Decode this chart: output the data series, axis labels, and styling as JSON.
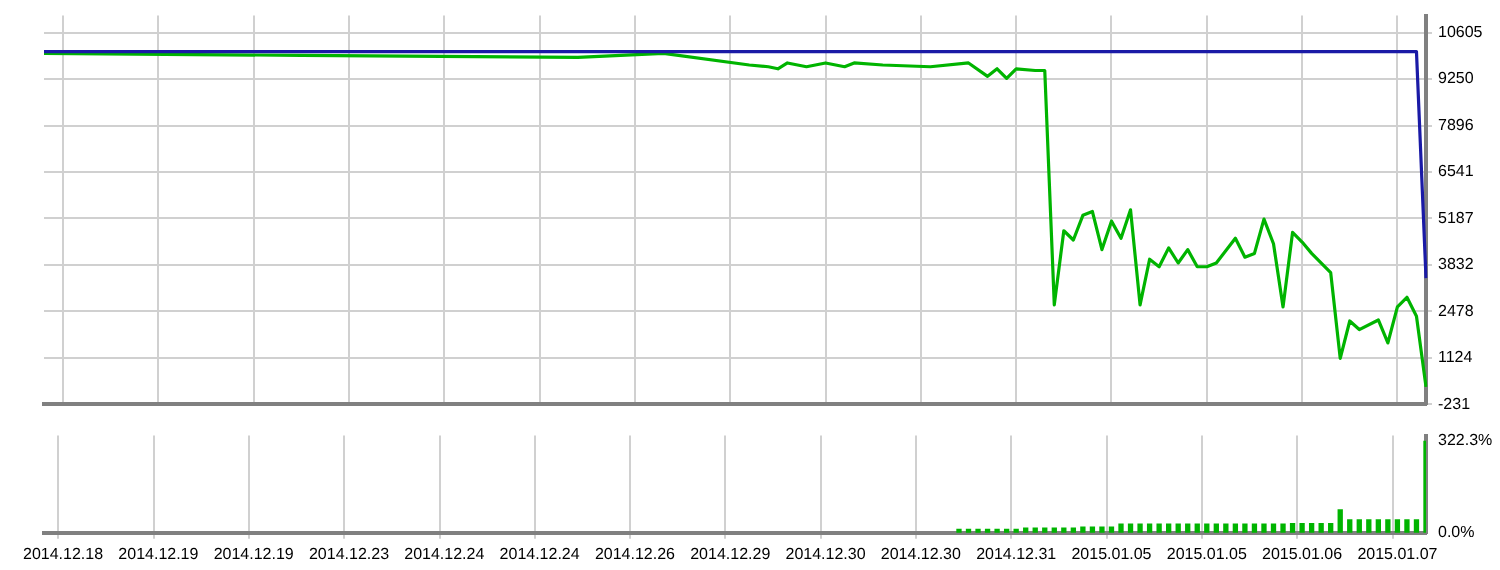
{
  "chart_data": [
    {
      "type": "line",
      "categories": [
        null,
        null,
        "2014.12.18",
        null,
        null,
        null,
        null,
        null,
        null,
        null,
        null,
        null,
        "2014.12.19",
        null,
        null,
        null,
        null,
        null,
        null,
        null,
        null,
        null,
        "2014.12.19",
        null,
        null,
        null,
        null,
        null,
        null,
        null,
        null,
        null,
        "2014.12.23",
        null,
        null,
        null,
        null,
        null,
        null,
        null,
        null,
        null,
        "2014.12.24",
        null,
        null,
        null,
        null,
        null,
        null,
        null,
        null,
        null,
        "2014.12.24",
        null,
        null,
        null,
        null,
        null,
        null,
        null,
        null,
        null,
        "2014.12.26",
        null,
        null,
        null,
        null,
        null,
        null,
        null,
        null,
        null,
        "2014.12.29",
        null,
        null,
        null,
        null,
        null,
        null,
        null,
        null,
        null,
        "2014.12.30",
        null,
        null,
        null,
        null,
        null,
        null,
        null,
        null,
        null,
        "2014.12.30",
        null,
        null,
        null,
        null,
        null,
        null,
        null,
        null,
        null,
        "2014.12.31",
        null,
        null,
        null,
        null,
        null,
        null,
        null,
        null,
        null,
        "2015.01.05",
        null,
        null,
        null,
        null,
        null,
        null,
        null,
        null,
        null,
        "2015.01.05",
        null,
        null,
        null,
        null,
        null,
        null,
        null,
        null,
        null,
        "2015.01.06",
        null,
        null,
        null,
        null,
        null,
        null,
        null,
        null,
        null,
        "2015.01.07",
        null,
        null,
        null
      ],
      "ylim": [
        -231,
        11100
      ],
      "yticks": [
        10605,
        9250,
        7896,
        6541,
        5187,
        3832,
        2478,
        1124,
        -231
      ],
      "grid": true,
      "tick_labels": "y",
      "marker": "none",
      "series": [
        {
          "color": "#1a1aa6",
          "values": [
            10050,
            null,
            null,
            null,
            null,
            null,
            null,
            null,
            null,
            null,
            null,
            null,
            null,
            null,
            null,
            null,
            null,
            null,
            null,
            null,
            null,
            null,
            null,
            null,
            null,
            null,
            null,
            null,
            null,
            null,
            null,
            null,
            null,
            null,
            null,
            null,
            null,
            null,
            null,
            null,
            null,
            null,
            null,
            null,
            null,
            null,
            null,
            null,
            null,
            null,
            null,
            null,
            null,
            null,
            null,
            null,
            null,
            null,
            null,
            null,
            null,
            null,
            null,
            null,
            null,
            null,
            null,
            null,
            null,
            null,
            null,
            null,
            null,
            null,
            null,
            null,
            null,
            null,
            null,
            null,
            null,
            null,
            null,
            null,
            null,
            null,
            null,
            null,
            null,
            null,
            null,
            null,
            null,
            null,
            null,
            null,
            null,
            null,
            null,
            null,
            null,
            null,
            null,
            null,
            null,
            null,
            null,
            null,
            null,
            null,
            null,
            null,
            null,
            null,
            null,
            null,
            null,
            null,
            null,
            null,
            null,
            null,
            null,
            null,
            null,
            null,
            null,
            null,
            null,
            null,
            null,
            null,
            null,
            null,
            null,
            null,
            null,
            null,
            null,
            null,
            null,
            null,
            null,
            null,
            10050,
            3450
          ]
        },
        {
          "color": "#00b400",
          "values": [
            10000,
            null,
            null,
            null,
            null,
            null,
            null,
            null,
            null,
            null,
            null,
            null,
            null,
            null,
            null,
            null,
            null,
            null,
            null,
            null,
            null,
            null,
            null,
            null,
            null,
            null,
            null,
            9940,
            null,
            null,
            null,
            null,
            null,
            null,
            null,
            null,
            null,
            null,
            null,
            null,
            null,
            null,
            null,
            null,
            null,
            null,
            null,
            null,
            null,
            null,
            null,
            null,
            null,
            null,
            null,
            null,
            9880,
            null,
            null,
            null,
            null,
            null,
            null,
            null,
            null,
            10000,
            null,
            null,
            null,
            null,
            null,
            null,
            null,
            null,
            9660,
            null,
            9610,
            9550,
            9720,
            null,
            9610,
            null,
            9720,
            null,
            9610,
            9720,
            null,
            null,
            9660,
            null,
            null,
            null,
            null,
            9610,
            null,
            null,
            null,
            9720,
            null,
            9330,
            9550,
            9270,
            9550,
            null,
            9500,
            9500,
            2670,
            4830,
            4560,
            5280,
            5390,
            4280,
            5110,
            4610,
            5440,
            2670,
            4000,
            3780,
            4330,
            3890,
            4280,
            3780,
            3780,
            3890,
            null,
            4610,
            4060,
            4170,
            5170,
            4450,
            2610,
            4780,
            4500,
            4170,
            null,
            3610,
            1110,
            2200,
            1950,
            null,
            2230,
            1560,
            2610,
            2890,
            2340,
            280
          ]
        }
      ]
    },
    {
      "type": "bar",
      "categories": [
        null,
        null,
        "2014.12.18",
        null,
        null,
        null,
        null,
        null,
        null,
        null,
        null,
        null,
        "2014.12.19",
        null,
        null,
        null,
        null,
        null,
        null,
        null,
        null,
        null,
        "2014.12.19",
        null,
        null,
        null,
        null,
        null,
        null,
        null,
        null,
        null,
        "2014.12.23",
        null,
        null,
        null,
        null,
        null,
        null,
        null,
        null,
        null,
        "2014.12.24",
        null,
        null,
        null,
        null,
        null,
        null,
        null,
        null,
        null,
        "2014.12.24",
        null,
        null,
        null,
        null,
        null,
        null,
        null,
        null,
        null,
        "2014.12.26",
        null,
        null,
        null,
        null,
        null,
        null,
        null,
        null,
        null,
        "2014.12.29",
        null,
        null,
        null,
        null,
        null,
        null,
        null,
        null,
        null,
        "2014.12.30",
        null,
        null,
        null,
        null,
        null,
        null,
        null,
        null,
        null,
        "2014.12.30",
        null,
        null,
        null,
        null,
        null,
        null,
        null,
        null,
        null,
        "2014.12.31",
        null,
        null,
        null,
        null,
        null,
        null,
        null,
        null,
        null,
        "2015.01.05",
        null,
        null,
        null,
        null,
        null,
        null,
        null,
        null,
        null,
        "2015.01.05",
        null,
        null,
        null,
        null,
        null,
        null,
        null,
        null,
        null,
        "2015.01.06",
        null,
        null,
        null,
        null,
        null,
        null,
        null,
        null,
        null,
        "2015.01.07",
        null,
        null,
        null
      ],
      "ylim": [
        0,
        340
      ],
      "yticks": [
        {
          "value": 322.3,
          "label": "322.3%"
        },
        {
          "value": 0,
          "label": "0.0%"
        }
      ],
      "grid": "x",
      "series": [
        {
          "color": "#00b400",
          "values": [
            null,
            null,
            null,
            null,
            null,
            null,
            null,
            null,
            null,
            null,
            null,
            null,
            null,
            null,
            null,
            null,
            null,
            null,
            null,
            null,
            null,
            null,
            null,
            null,
            null,
            null,
            null,
            null,
            null,
            null,
            null,
            null,
            null,
            null,
            null,
            null,
            null,
            null,
            null,
            null,
            null,
            null,
            null,
            null,
            null,
            null,
            null,
            null,
            null,
            null,
            null,
            null,
            null,
            null,
            null,
            null,
            null,
            null,
            null,
            null,
            null,
            null,
            null,
            null,
            null,
            null,
            null,
            null,
            null,
            null,
            null,
            null,
            null,
            null,
            null,
            null,
            null,
            null,
            null,
            null,
            null,
            null,
            null,
            null,
            null,
            null,
            null,
            null,
            null,
            null,
            null,
            null,
            null,
            null,
            null,
            null,
            12,
            12,
            12,
            12,
            12,
            12,
            12,
            16,
            16,
            16,
            16,
            16,
            16,
            20,
            20,
            20,
            20,
            30,
            30,
            30,
            30,
            30,
            30,
            30,
            30,
            30,
            30,
            30,
            30,
            30,
            30,
            30,
            30,
            30,
            30,
            32,
            32,
            32,
            32,
            32,
            80,
            45,
            45,
            45,
            45,
            45,
            45,
            45,
            45,
            320
          ]
        }
      ]
    }
  ]
}
